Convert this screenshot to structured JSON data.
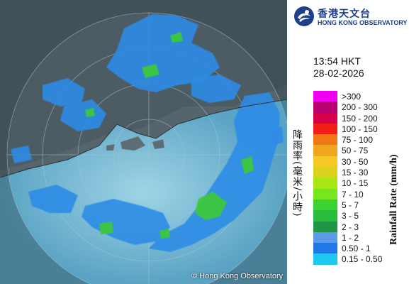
{
  "header": {
    "org_name_zh": "香港天文台",
    "org_name_en": "HONG KONG OBSERVATORY"
  },
  "timestamp": {
    "time": "13:54 HKT",
    "date": "28-02-2026"
  },
  "legend": {
    "title_zh": "降雨率(毫米/小時)",
    "title_en": "Rainfall Rate (mm/h)",
    "items": [
      {
        "label": ">300",
        "color": "#f000f0"
      },
      {
        "label": "200 - 300",
        "color": "#b8006e"
      },
      {
        "label": "150 - 200",
        "color": "#d6004a"
      },
      {
        "label": "100 - 150",
        "color": "#f01e14"
      },
      {
        "label": "75 - 100",
        "color": "#f07814"
      },
      {
        "label": "50 - 75",
        "color": "#f0a51e"
      },
      {
        "label": "30 - 50",
        "color": "#f5c828"
      },
      {
        "label": "15 - 30",
        "color": "#dcd21e"
      },
      {
        "label": "10 - 15",
        "color": "#aae614"
      },
      {
        "label": "7 - 10",
        "color": "#78e61e"
      },
      {
        "label": "5 - 7",
        "color": "#3cd232"
      },
      {
        "label": "3 - 5",
        "color": "#28be3c"
      },
      {
        "label": "2 - 3",
        "color": "#1e9646"
      },
      {
        "label": "1 - 2",
        "color": "#5a9ae6"
      },
      {
        "label": "0.50 - 1",
        "color": "#1e78e6"
      },
      {
        "label": "0.15 - 0.50",
        "color": "#1ec8f0"
      }
    ]
  },
  "map": {
    "copyright": "© Hong Kong Observatory",
    "sea_color": "#78bcd6",
    "land_color": "#5e6d73",
    "rain_light_color": "#2d8ce6",
    "rain_moderate_color": "#3cc83c"
  }
}
